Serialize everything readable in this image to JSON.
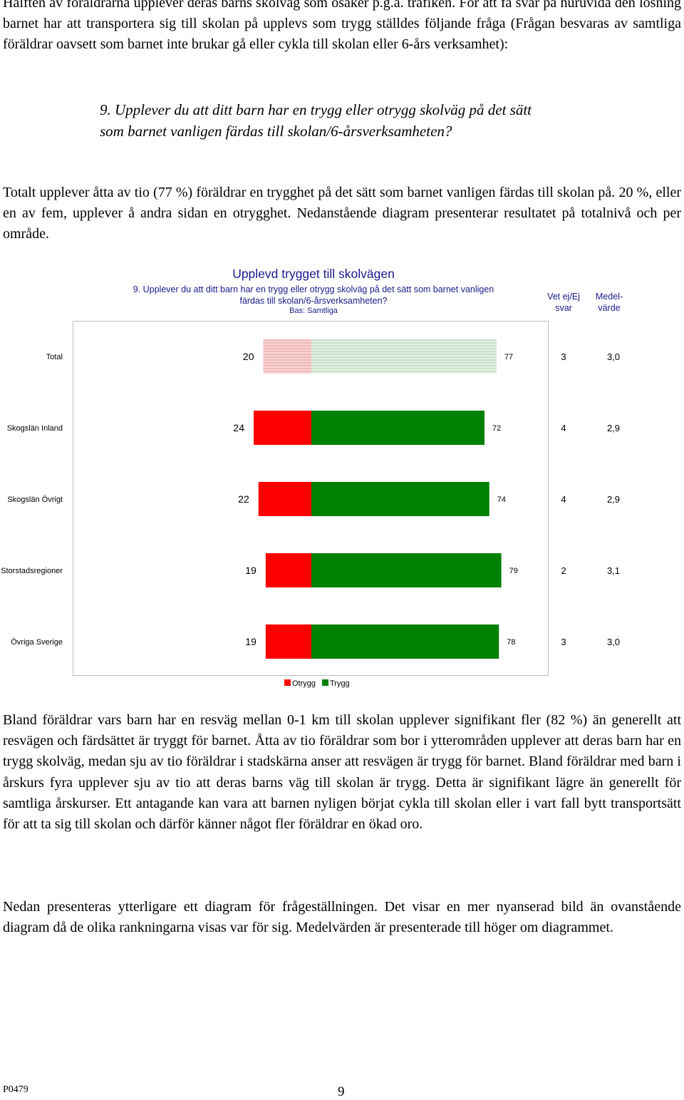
{
  "intro_text": "Hälften av föräldrarna upplever deras barns skolväg som osäker p.g.a. trafiken. För att få svar på huruvida den lösning barnet har att transportera sig till skolan på upplevs som trygg ställdes följande fråga (Frågan besvaras av samtliga föräldrar oavsett som barnet inte brukar gå eller cykla till skolan eller 6-års verksamhet):",
  "question_text": "9. Upplever du att ditt barn har en trygg eller otrygg skolväg på det sätt som barnet vanligen färdas till skolan/6-årsverksamheten?",
  "summary_text": "Totalt upplever åtta av tio (77 %) föräldrar en trygghet på det sätt som barnet vanligen färdas till skolan på. 20 %, eller en av fem, upplever å andra sidan en otrygghet. Nedanstående diagram presenterar resultatet på totalnivå och per område.",
  "chart_header": {
    "title": "Upplevd trygget till skolvägen",
    "subtitle": "9.  Upplever du att ditt barn har en trygg eller otrygg skolväg på det sätt som barnet vanligen färdas till skolan/6-årsverksamheten?",
    "base": "Bas: Samtliga",
    "col_vet_ej": "Vet ej/Ej svar",
    "col_medel": "Medel-värde"
  },
  "chart_data": {
    "type": "bar",
    "orientation": "horizontal-diverging",
    "title": "Upplevd trygget till skolvägen",
    "categories": [
      "Total",
      "Skogslän Inland",
      "Skogslän Övrigt",
      "Storstadsregioner",
      "Övriga Sverige"
    ],
    "series": [
      {
        "name": "Otrygg",
        "values": [
          20,
          24,
          22,
          19,
          19
        ],
        "color": "#ff0000"
      },
      {
        "name": "Trygg",
        "values": [
          77,
          72,
          74,
          79,
          78
        ],
        "color": "#008000"
      }
    ],
    "vet_ej": [
      "3",
      "4",
      "4",
      "2",
      "3"
    ],
    "medelvarde": [
      "3,0",
      "2,9",
      "2,9",
      "3,1",
      "3,0"
    ],
    "highlighted_category": "Total",
    "legend_position": "bottom",
    "grid": false
  },
  "paragraph_3": "Bland föräldrar vars barn har en resväg mellan 0-1 km till skolan upplever signifikant fler (82 %) än generellt att resvägen och färdsättet är tryggt för barnet. Åtta av tio föräldrar som bor i ytterområden upplever att deras barn har en trygg skolväg, medan sju av tio föräldrar i stadskärna anser att resvägen är trygg för barnet. Bland föräldrar med barn i årskurs fyra upplever sju av tio att deras barns väg till skolan är trygg. Detta är signifikant lägre än generellt för samtliga årskurser. Ett antagande kan vara att barnen nyligen börjat cykla till skolan eller i vart fall bytt transportsätt för att ta sig till skolan och därför känner något fler föräldrar en ökad oro.",
  "paragraph_4": "Nedan presenteras ytterligare ett diagram för frågeställningen. Det visar en mer nyanserad bild än ovanstående diagram då de olika rankningarna visas var för sig. Medelvärden är presenterade till höger om diagrammet.",
  "footer": {
    "code": "P0479",
    "page": "9"
  }
}
